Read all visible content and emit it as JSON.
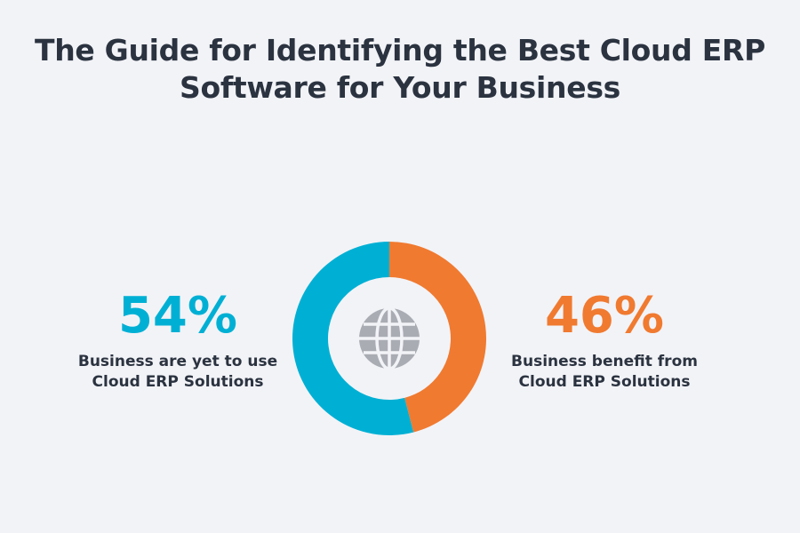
{
  "chart_data": {
    "type": "donut",
    "title": "The Guide for Identifying the Best Cloud ERP Software for Your Business",
    "categories": [
      "Business are yet to use Cloud ERP Solutions",
      "Business benefit from Cloud ERP Solutions"
    ],
    "values": [
      54,
      46
    ],
    "value_labels": [
      "54%",
      "46%"
    ],
    "colors": [
      "#00b0d4",
      "#f07a30"
    ]
  }
}
